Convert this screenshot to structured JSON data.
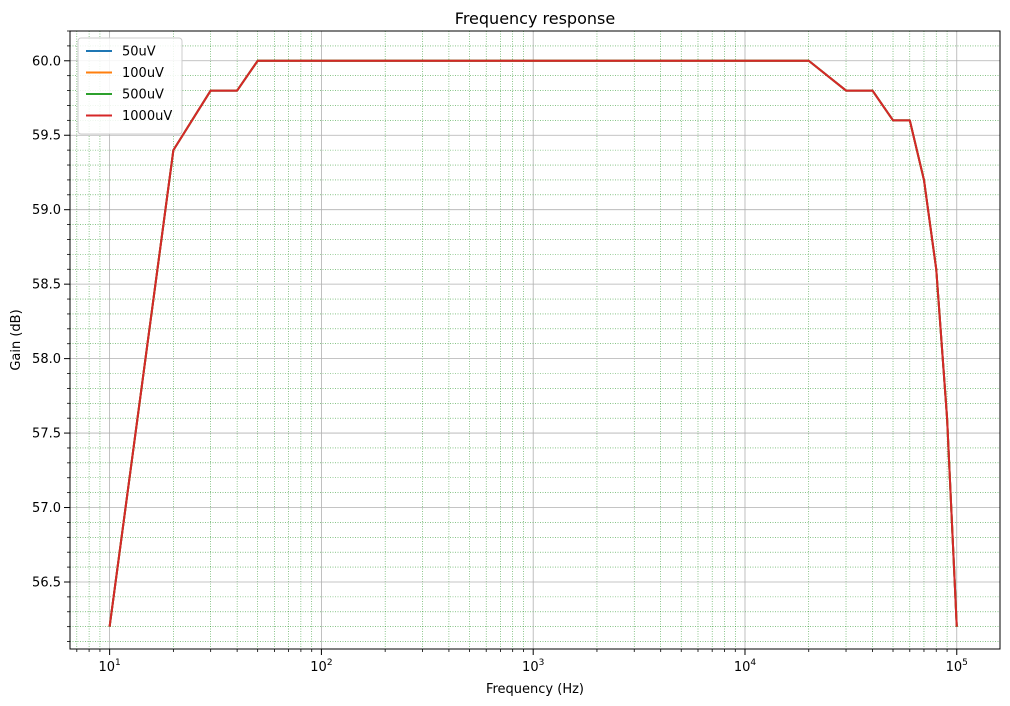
{
  "chart_data": {
    "type": "line",
    "title": "Frequency response",
    "xlabel": "Frequency (Hz)",
    "ylabel": "Gain (dB)",
    "xscale": "log",
    "xlim": [
      6.5,
      160000
    ],
    "ylim": [
      56.05,
      60.2
    ],
    "x_major_ticks": [
      10,
      100,
      1000,
      10000,
      100000
    ],
    "x_tick_labels": [
      {
        "base": "10",
        "exp": "1"
      },
      {
        "base": "10",
        "exp": "2"
      },
      {
        "base": "10",
        "exp": "3"
      },
      {
        "base": "10",
        "exp": "4"
      },
      {
        "base": "10",
        "exp": "5"
      }
    ],
    "y_ticks": [
      56.5,
      57.0,
      57.5,
      58.0,
      58.5,
      59.0,
      59.5,
      60.0
    ],
    "y_tick_labels": [
      "56.5",
      "57.0",
      "57.5",
      "58.0",
      "58.5",
      "59.0",
      "59.5",
      "60.0"
    ],
    "y_minor_step": 0.1,
    "grid": {
      "major": true,
      "minor": true
    },
    "legend_position": "top-left",
    "x": [
      10,
      20,
      30,
      40,
      50,
      100,
      200,
      300,
      400,
      500,
      1000,
      2000,
      3000,
      4000,
      5000,
      10000,
      20000,
      30000,
      40000,
      50000,
      60000,
      70000,
      80000,
      90000,
      100000
    ],
    "series": [
      {
        "name": "50uV",
        "color": "#1f77b4",
        "values": [
          56.2,
          59.4,
          59.8,
          59.8,
          60.0,
          60.0,
          60.0,
          60.0,
          60.0,
          60.0,
          60.0,
          60.0,
          60.0,
          60.0,
          60.0,
          60.0,
          60.0,
          59.8,
          59.8,
          59.6,
          59.6,
          59.2,
          58.6,
          57.6,
          56.2
        ]
      },
      {
        "name": "100uV",
        "color": "#ff7f0e",
        "values": [
          56.2,
          59.4,
          59.8,
          59.8,
          60.0,
          60.0,
          60.0,
          60.0,
          60.0,
          60.0,
          60.0,
          60.0,
          60.0,
          60.0,
          60.0,
          60.0,
          60.0,
          59.8,
          59.8,
          59.6,
          59.6,
          59.2,
          58.6,
          57.6,
          56.2
        ]
      },
      {
        "name": "500uV",
        "color": "#2ca02c",
        "values": [
          56.2,
          59.4,
          59.8,
          59.8,
          60.0,
          60.0,
          60.0,
          60.0,
          60.0,
          60.0,
          60.0,
          60.0,
          60.0,
          60.0,
          60.0,
          60.0,
          60.0,
          59.8,
          59.8,
          59.6,
          59.6,
          59.2,
          58.6,
          57.6,
          56.2
        ]
      },
      {
        "name": "1000uV",
        "color": "#d62728",
        "values": [
          56.2,
          59.4,
          59.8,
          59.8,
          60.0,
          60.0,
          60.0,
          60.0,
          60.0,
          60.0,
          60.0,
          60.0,
          60.0,
          60.0,
          60.0,
          60.0,
          60.0,
          59.8,
          59.8,
          59.6,
          59.6,
          59.2,
          58.6,
          57.6,
          56.2
        ]
      }
    ]
  }
}
